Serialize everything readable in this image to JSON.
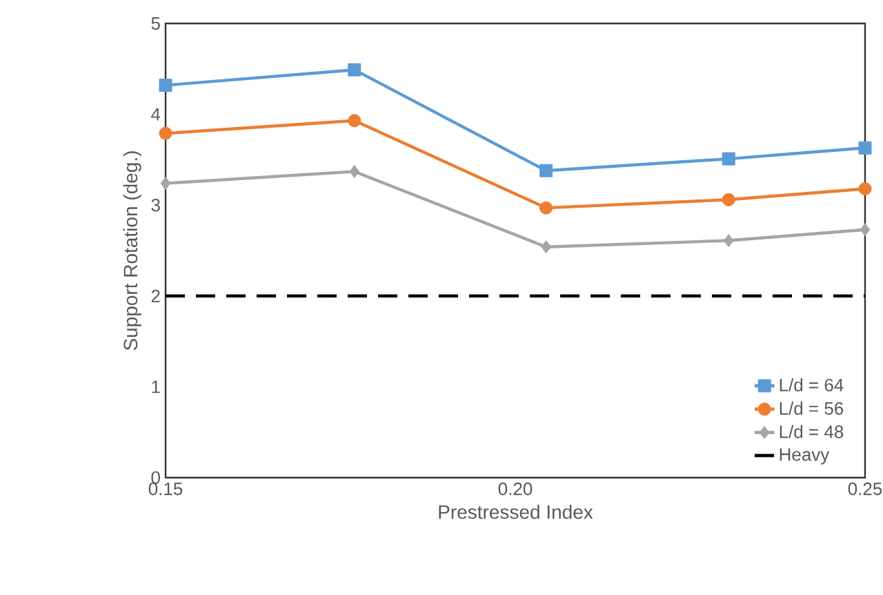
{
  "chart_data": {
    "type": "line",
    "xlabel": "Prestressed Index",
    "ylabel": "Support Rotation (deg.)",
    "xlim": [
      0.15,
      0.25
    ],
    "xticks": [
      {
        "value": 0.15,
        "label": "0.15"
      },
      {
        "value": 0.2,
        "label": "0.20"
      },
      {
        "value": 0.25,
        "label": "0.25"
      }
    ],
    "ylim": [
      0,
      5
    ],
    "yticks": [
      0,
      1,
      2,
      3,
      4,
      5
    ],
    "grid": false,
    "legend": "bottom right",
    "series": [
      {
        "name": "L/d = 64",
        "color": "#5b9bd5",
        "marker": "square",
        "x": [
          0.15,
          0.177,
          0.2044,
          0.2305,
          0.25
        ],
        "values": [
          4.32,
          4.49,
          3.38,
          3.51,
          3.63
        ]
      },
      {
        "name": "L/d = 56",
        "color": "#ed7d31",
        "marker": "circle",
        "x": [
          0.15,
          0.177,
          0.2044,
          0.2305,
          0.25
        ],
        "values": [
          3.79,
          3.93,
          2.97,
          3.06,
          3.18
        ]
      },
      {
        "name": "L/d = 48",
        "color": "#a5a5a5",
        "marker": "diamond",
        "x": [
          0.15,
          0.177,
          0.2044,
          0.2305,
          0.25
        ],
        "values": [
          3.24,
          3.37,
          2.54,
          2.61,
          2.73
        ]
      },
      {
        "name": "Heavy",
        "color": "#000000",
        "marker": "none",
        "line_style": "dashed",
        "x": [
          0.15,
          0.25
        ],
        "values": [
          2,
          2
        ]
      }
    ]
  }
}
